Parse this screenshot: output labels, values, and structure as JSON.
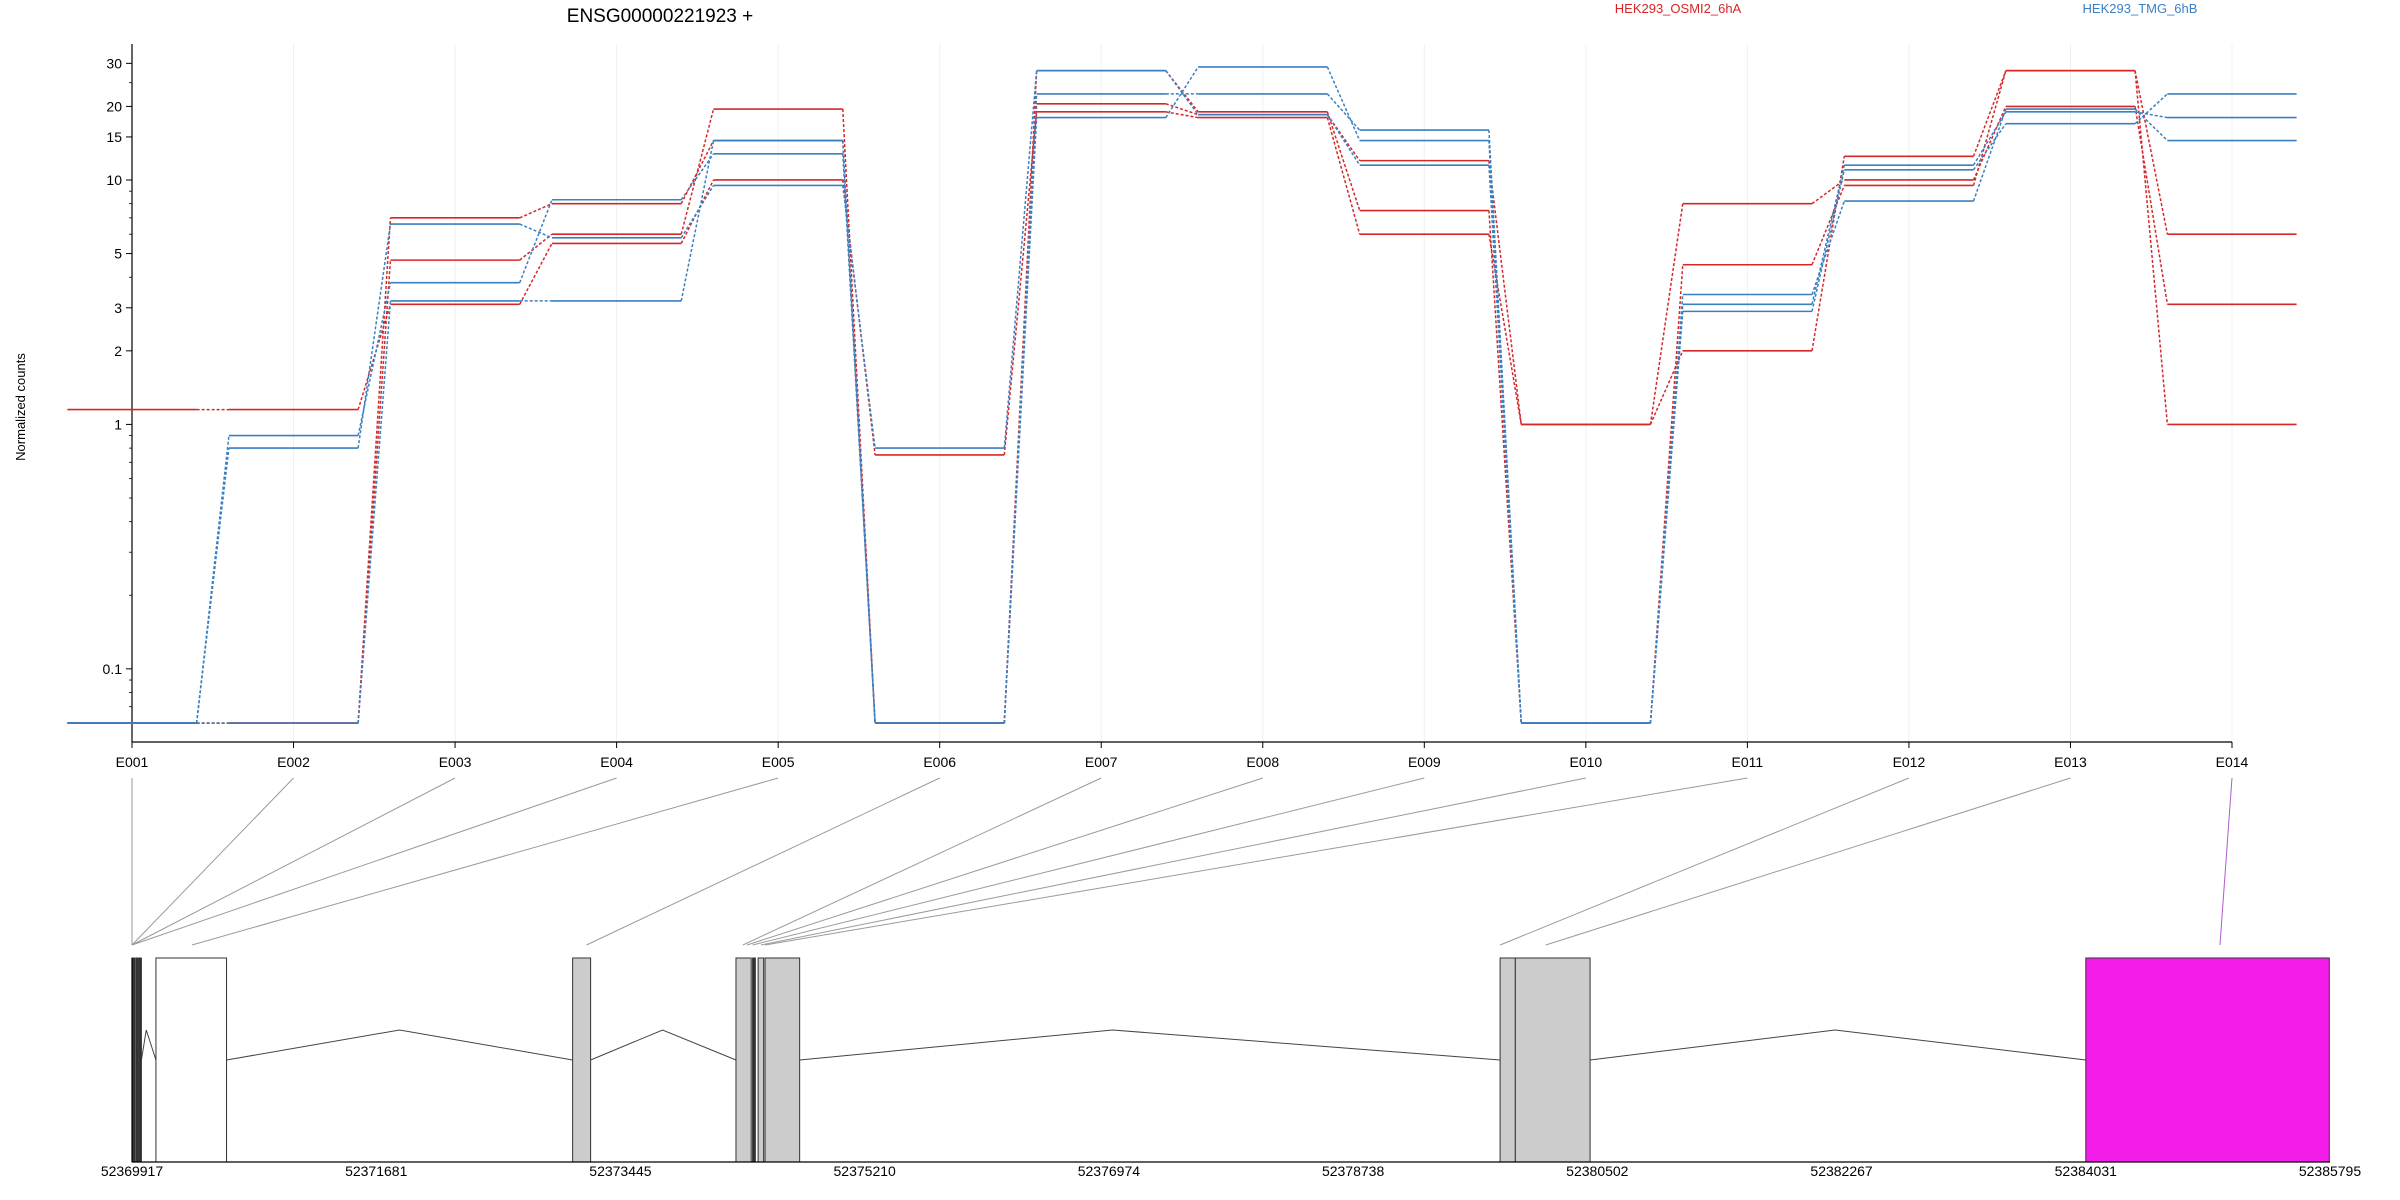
{
  "chart_data": {
    "type": "line",
    "title": "ENSG00000221923 +",
    "ylabel": "Normalized counts",
    "y_scale": "log",
    "y_ticks": [
      0.1,
      1,
      2,
      3,
      5,
      10,
      15,
      20,
      30
    ],
    "y_tick_labels": [
      "0.1",
      "1",
      "2",
      "3",
      "5",
      "10",
      "15",
      "20",
      "30"
    ],
    "categories": [
      "E001",
      "E002",
      "E003",
      "E004",
      "E005",
      "E006",
      "E007",
      "E008",
      "E009",
      "E010",
      "E011",
      "E012",
      "E013",
      "E014"
    ],
    "legend_position": "top",
    "groups": [
      {
        "name": "HEK293_OSMI2_6hA",
        "color": "#d62728"
      },
      {
        "name": "HEK293_TMG_6hB",
        "color": "#3a7fc1"
      }
    ],
    "series": [
      {
        "group": 0,
        "values": [
          1.15,
          1.15,
          3.1,
          5.5,
          10.0,
          0.75,
          19.0,
          18.0,
          6.0,
          1.0,
          8.0,
          10.0,
          20.0,
          3.1
        ]
      },
      {
        "group": 0,
        "values": [
          0.06,
          0.06,
          4.7,
          6.0,
          19.5,
          0.06,
          20.5,
          18.5,
          12.0,
          1.0,
          2.0,
          12.5,
          28.0,
          6.0
        ]
      },
      {
        "group": 0,
        "values": [
          0.06,
          0.06,
          7.0,
          8.0,
          14.5,
          0.06,
          28.0,
          19.0,
          7.5,
          0.06,
          4.5,
          9.5,
          28.0,
          1.0
        ]
      },
      {
        "group": 1,
        "values": [
          0.06,
          0.9,
          3.8,
          8.3,
          12.8,
          0.06,
          22.5,
          22.5,
          16.0,
          0.06,
          2.9,
          11.0,
          17.0,
          22.5
        ]
      },
      {
        "group": 1,
        "values": [
          0.06,
          0.06,
          3.2,
          3.2,
          14.5,
          0.06,
          18.0,
          29.0,
          14.5,
          0.06,
          3.4,
          8.2,
          19.5,
          14.5
        ]
      },
      {
        "group": 1,
        "values": [
          0.06,
          0.8,
          6.6,
          5.8,
          9.5,
          0.8,
          28.0,
          18.5,
          11.5,
          0.06,
          3.1,
          11.5,
          19.0,
          18.0
        ]
      }
    ],
    "genome": {
      "range": [
        52369917,
        52385795
      ],
      "tick_labels": [
        "52369917",
        "52371681",
        "52373445",
        "52375210",
        "52376974",
        "52378738",
        "52380502",
        "52382267",
        "52384031",
        "52385795"
      ],
      "exons": [
        {
          "start": 52369917,
          "end": 52369937,
          "fill": "#333333"
        },
        {
          "start": 52369945,
          "end": 52369960,
          "fill": "#333333"
        },
        {
          "start": 52369967,
          "end": 52369985,
          "fill": "#333333"
        },
        {
          "start": 52370090,
          "end": 52370600,
          "fill": "#ffffff"
        },
        {
          "start": 52373100,
          "end": 52373230,
          "fill": "#cccccc"
        },
        {
          "start": 52374280,
          "end": 52374390,
          "fill": "#cccccc"
        },
        {
          "start": 52374400,
          "end": 52374420,
          "fill": "#333333"
        },
        {
          "start": 52374440,
          "end": 52374480,
          "fill": "#cccccc"
        },
        {
          "start": 52374490,
          "end": 52374740,
          "fill": "#cccccc"
        },
        {
          "start": 52379800,
          "end": 52379910,
          "fill": "#cccccc"
        },
        {
          "start": 52379910,
          "end": 52380450,
          "fill": "#cccccc"
        },
        {
          "start": 52384031,
          "end": 52385790,
          "fill": "#f31ce9"
        }
      ],
      "introns": [
        {
          "from": 52369985,
          "to": 52370090,
          "peak": 52370020
        },
        {
          "from": 52370600,
          "to": 52373100,
          "peak": 52371850
        },
        {
          "from": 52373230,
          "to": 52374280,
          "peak": 52373750
        },
        {
          "from": 52374740,
          "to": 52379800,
          "peak": 52377000
        },
        {
          "from": 52380450,
          "to": 52384031,
          "peak": 52382220
        }
      ],
      "connectors": [
        {
          "bin": 0,
          "pos": 52369917
        },
        {
          "bin": 1,
          "pos": 52369917
        },
        {
          "bin": 2,
          "pos": 52369917
        },
        {
          "bin": 3,
          "pos": 52369917
        },
        {
          "bin": 4,
          "pos": 52370350
        },
        {
          "bin": 5,
          "pos": 52373200
        },
        {
          "bin": 6,
          "pos": 52374330
        },
        {
          "bin": 7,
          "pos": 52374360
        },
        {
          "bin": 8,
          "pos": 52374400
        },
        {
          "bin": 9,
          "pos": 52374460
        },
        {
          "bin": 10,
          "pos": 52374490
        },
        {
          "bin": 11,
          "pos": 52379800
        },
        {
          "bin": 12,
          "pos": 52380130
        },
        {
          "bin": 13,
          "pos": 52385000,
          "color": "#b05cc8"
        }
      ]
    }
  }
}
